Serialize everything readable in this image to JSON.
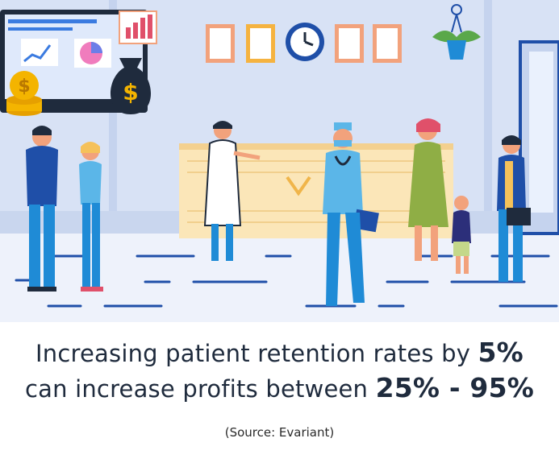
{
  "caption": {
    "line1_prefix": "Increasing patient retention rates by ",
    "line1_highlight": "5%",
    "line2_prefix": "can increase profits between ",
    "line2_highlight": "25% - 95%",
    "source": "(Source: Evariant)"
  },
  "colors": {
    "wall": "#d6e1f5",
    "floor": "#eef2fb",
    "accent_blue": "#1f4fa8",
    "desk": "#fbe6b8",
    "frame_orange": "#f2a27c"
  },
  "illustration": {
    "icons": [
      "monitor-icon",
      "money-bag-icon",
      "coin-stack-icon",
      "clock-icon",
      "plant-icon",
      "door-icon",
      "reception-desk",
      "doctor-figure",
      "nurse-figure",
      "patient-figures"
    ]
  }
}
